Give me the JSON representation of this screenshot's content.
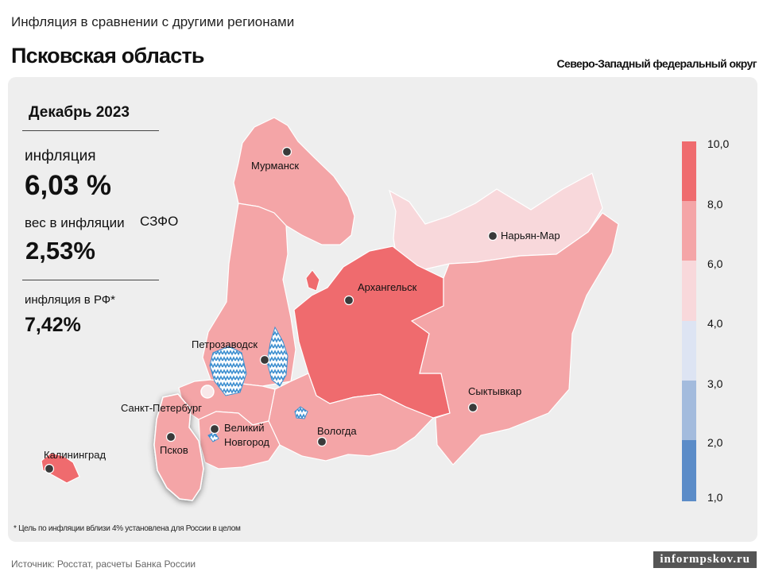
{
  "header": {
    "supertitle": "Инфляция в сравнении с другими регионами",
    "title": "Псковская область",
    "district": "Северо-Западный федеральный округ"
  },
  "stats": {
    "period": "Декабрь 2023",
    "inflation_label": "инфляция",
    "inflation_value": "6,03 %",
    "weight_label": "вес в инфляции",
    "weight_region": "СЗФО",
    "weight_value": "2,53%",
    "rf_label": "инфляция  в РФ*",
    "rf_value": "7,42%"
  },
  "map": {
    "cities": {
      "murmansk": "Мурманск",
      "naryan_mar": "Нарьян-Мар",
      "arkhangelsk": "Архангельск",
      "petrozavodsk": "Петрозаводск",
      "spb": "Санкт-Петербург",
      "veliky_novgorod_1": "Великий",
      "veliky_novgorod_2": "Новгород",
      "pskov": "Псков",
      "vologda": "Вологда",
      "syktyvkar": "Сыктывкар",
      "kaliningrad": "Калининград"
    },
    "region_colors": {
      "murmansk": "#f4a5a7",
      "karelia": "#f4a5a7",
      "arkhangelsk": "#ef6b6e",
      "nenets": "#f8d8db",
      "komi": "#f4a5a7",
      "vologda": "#f4a5a7",
      "leningrad": "#f4a5a7",
      "novgorod": "#f4a5a7",
      "pskov": "#f4a5a7",
      "kaliningrad": "#ef6b6e"
    },
    "highlighted_region": "pskov",
    "lake_color": "#4aa3df"
  },
  "legend": {
    "ticks": [
      "10,0",
      "8,0",
      "6,0",
      "4,0",
      "3,0",
      "2,0",
      "1,0"
    ],
    "colors": [
      "#ef6b6e",
      "#f4a5a7",
      "#f8d8db",
      "#dde4f3",
      "#a3bbdd",
      "#5b8cc8"
    ]
  },
  "footer": {
    "footnote": "* Цель по инфляции вблизи 4% установлена для России в целом",
    "source": "Источник: Росстат, расчеты Банка России",
    "watermark": "informpskov.ru"
  }
}
